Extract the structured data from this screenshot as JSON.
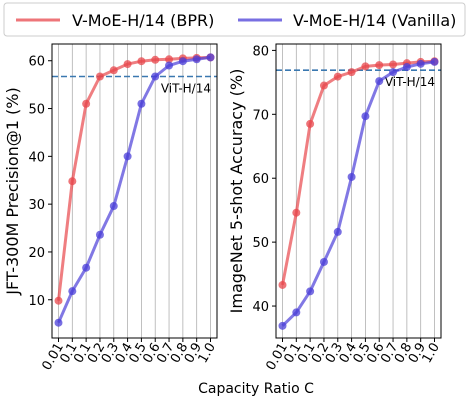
{
  "legend": {
    "placement": "top-center",
    "entries": [
      {
        "label": "V-MoE-H/14 (BPR)",
        "color": "#e8474c"
      },
      {
        "label": "V-MoE-H/14 (Vanilla)",
        "color": "#4b3fd8"
      }
    ]
  },
  "shared_xlabel": "Capacity Ratio C",
  "chart_data": [
    {
      "type": "line",
      "ylabel": "JFT-300M Precision@1 (%)",
      "x_tick_labels": [
        "0.01",
        "0.1",
        "0.1",
        "0.2",
        "0.3",
        "0.4",
        "0.5",
        "0.6",
        "0.7",
        "0.8",
        "0.9",
        "1.0"
      ],
      "ylim": [
        2,
        63.5
      ],
      "y_ticks": [
        10,
        20,
        30,
        40,
        50,
        60
      ],
      "grid": "vertical",
      "reference_line": {
        "label": "ViT-H/14",
        "value": 56.7,
        "color": "#3a78b0"
      },
      "series": [
        {
          "name": "V-MoE-H/14 (BPR)",
          "color": "#e8474c",
          "values": [
            9.8,
            34.8,
            51.0,
            56.7,
            58.0,
            59.3,
            59.9,
            60.2,
            60.3,
            60.5,
            60.6,
            60.7
          ]
        },
        {
          "name": "V-MoE-H/14 (Vanilla)",
          "color": "#4b3fd8",
          "values": [
            5.2,
            11.8,
            16.7,
            23.6,
            29.6,
            40.0,
            51.0,
            56.7,
            59.0,
            59.9,
            60.3,
            60.7
          ]
        }
      ]
    },
    {
      "type": "line",
      "ylabel": "ImageNet 5-shot Accuracy (%)",
      "x_tick_labels": [
        "0.01",
        "0.1",
        "0.1",
        "0.2",
        "0.3",
        "0.4",
        "0.5",
        "0.6",
        "0.7",
        "0.8",
        "0.9",
        "1.0"
      ],
      "ylim": [
        35,
        81
      ],
      "y_ticks": [
        40,
        50,
        60,
        70,
        80
      ],
      "grid": "vertical",
      "reference_line": {
        "label": "ViT-H/14",
        "value": 76.9,
        "color": "#3a78b0"
      },
      "series": [
        {
          "name": "V-MoE-H/14 (BPR)",
          "color": "#e8474c",
          "values": [
            43.3,
            54.6,
            68.5,
            74.5,
            75.9,
            76.6,
            77.5,
            77.7,
            77.8,
            78.0,
            78.2,
            78.3
          ]
        },
        {
          "name": "V-MoE-H/14 (Vanilla)",
          "color": "#4b3fd8",
          "values": [
            36.9,
            39.0,
            42.3,
            46.9,
            51.6,
            60.2,
            69.7,
            75.2,
            76.6,
            77.4,
            77.9,
            78.2
          ]
        }
      ]
    }
  ]
}
